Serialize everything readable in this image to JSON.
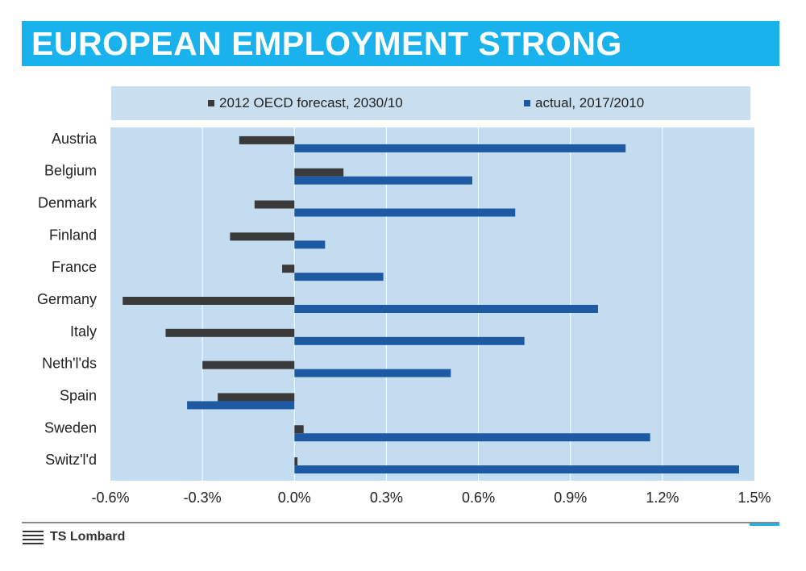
{
  "header": {
    "title": "EUROPEAN EMPLOYMENT STRONG"
  },
  "colors": {
    "title_bg": "#1ab2ec",
    "plot_bg": "#c4dcef",
    "legend_bg": "#c9dfef",
    "forecast": "#3a3a3a",
    "actual": "#1d5aa3"
  },
  "legend": {
    "placement": "top",
    "items": [
      {
        "label": "2012 OECD forecast, 2030/10",
        "color": "#3a3a3a"
      },
      {
        "label": "actual, 2017/2010",
        "color": "#1d5aa3"
      }
    ]
  },
  "chart_data": {
    "type": "bar",
    "orientation": "horizontal",
    "title": "EUROPEAN EMPLOYMENT STRONG",
    "categories": [
      "Austria",
      "Belgium",
      "Denmark",
      "Finland",
      "France",
      "Germany",
      "Italy",
      "Neth'l'ds",
      "Spain",
      "Sweden",
      "Switz'l'd"
    ],
    "series": [
      {
        "name": "2012 OECD forecast, 2030/10",
        "values": [
          -0.18,
          0.16,
          -0.13,
          -0.21,
          -0.04,
          -0.56,
          -0.42,
          -0.3,
          -0.25,
          0.03,
          0.01
        ]
      },
      {
        "name": "actual, 2017/2010",
        "values": [
          1.08,
          0.58,
          0.72,
          0.1,
          0.29,
          0.99,
          0.75,
          0.51,
          -0.35,
          1.16,
          1.45
        ]
      }
    ],
    "xlim": [
      -0.6,
      1.5
    ],
    "xticks": [
      -0.6,
      -0.3,
      0.0,
      0.3,
      0.6,
      0.9,
      1.2,
      1.5
    ],
    "xtick_labels": [
      "-0.6%",
      "-0.3%",
      "0.0%",
      "0.3%",
      "0.6%",
      "0.9%",
      "1.2%",
      "1.5%"
    ],
    "xlabel": "",
    "ylabel": "",
    "grid": "vertical"
  },
  "footer": {
    "logo_text": "TS Lombard",
    "logo_icon": "ts-lombard-logo-icon"
  }
}
